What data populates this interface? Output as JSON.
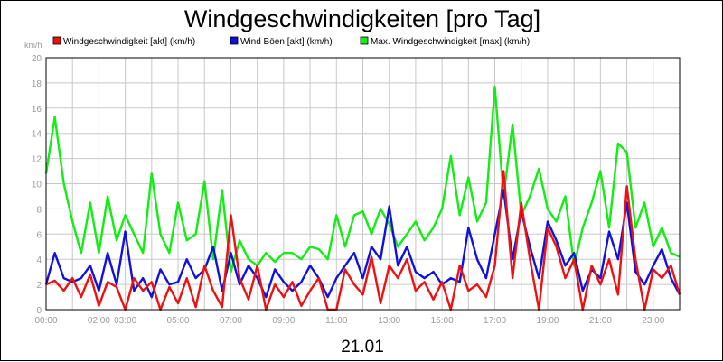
{
  "chart_data": {
    "type": "line",
    "title": "Windgeschwindigkeiten [pro Tag]",
    "ylabel": "km/h",
    "xlabel": "21.01",
    "ylim": [
      0,
      20
    ],
    "yticks": [
      "0",
      "2",
      "4",
      "6",
      "8",
      "10",
      "12",
      "14",
      "16",
      "18",
      "20"
    ],
    "xticks": [
      {
        "label": "00:00",
        "hour": 0
      },
      {
        "label": "02:00",
        "hour": 2
      },
      {
        "label": "03:00",
        "hour": 3
      },
      {
        "label": "05:00",
        "hour": 5
      },
      {
        "label": "07:00",
        "hour": 7
      },
      {
        "label": "09:00",
        "hour": 9
      },
      {
        "label": "11:00",
        "hour": 11
      },
      {
        "label": "13:00",
        "hour": 13
      },
      {
        "label": "15:00",
        "hour": 15
      },
      {
        "label": "17:00",
        "hour": 17
      },
      {
        "label": "19:00",
        "hour": 19
      },
      {
        "label": "21:00",
        "hour": 21
      },
      {
        "label": "23:00",
        "hour": 23
      }
    ],
    "xlim": [
      0,
      24
    ],
    "grid": true,
    "legend_position": "top",
    "series": [
      {
        "name": "Windgeschwindigkeit [akt] (km/h)",
        "color": "#ee1111",
        "x": [
          0,
          0.33,
          0.67,
          1,
          1.33,
          1.67,
          2,
          2.33,
          2.67,
          3,
          3.33,
          3.67,
          4,
          4.33,
          4.67,
          5,
          5.33,
          5.67,
          6,
          6.33,
          6.67,
          7,
          7.33,
          7.67,
          8,
          8.33,
          8.67,
          9,
          9.33,
          9.67,
          10,
          10.33,
          10.67,
          11,
          11.33,
          11.67,
          12,
          12.33,
          12.67,
          13,
          13.33,
          13.67,
          14,
          14.33,
          14.67,
          15,
          15.33,
          15.67,
          16,
          16.33,
          16.67,
          17,
          17.33,
          17.67,
          18,
          18.33,
          18.67,
          19,
          19.33,
          19.67,
          20,
          20.33,
          20.67,
          21,
          21.33,
          21.67,
          22,
          22.33,
          22.67,
          23,
          23.33,
          23.67,
          24
        ],
        "y": [
          2,
          2.3,
          1.5,
          2.5,
          1,
          2.8,
          0.3,
          2.2,
          1.8,
          0,
          2.5,
          1.5,
          2.2,
          0,
          1.8,
          0.5,
          2.5,
          0.2,
          3.5,
          1.5,
          0.2,
          7.5,
          2.5,
          0.8,
          3.5,
          0,
          2,
          1,
          2.2,
          0.3,
          1.5,
          2.5,
          0,
          0,
          3.2,
          2,
          1.2,
          4.2,
          0.5,
          3.5,
          2.5,
          4,
          1.5,
          2.2,
          0.8,
          2.2,
          0,
          3.5,
          1.5,
          2,
          1,
          3.5,
          11,
          2.5,
          8.5,
          4,
          0,
          6.5,
          5,
          2.5,
          4,
          0,
          3.5,
          2,
          4,
          1.2,
          9.8,
          4,
          0,
          3.2,
          2.5,
          3.5,
          1.2
        ]
      },
      {
        "name": "Wind Böen [akt] (km/h)",
        "color": "#1111dd",
        "x": [
          0,
          0.33,
          0.67,
          1,
          1.33,
          1.67,
          2,
          2.33,
          2.67,
          3,
          3.33,
          3.67,
          4,
          4.33,
          4.67,
          5,
          5.33,
          5.67,
          6,
          6.33,
          6.67,
          7,
          7.33,
          7.67,
          8,
          8.33,
          8.67,
          9,
          9.33,
          9.67,
          10,
          10.33,
          10.67,
          11,
          11.33,
          11.67,
          12,
          12.33,
          12.67,
          13,
          13.33,
          13.67,
          14,
          14.33,
          14.67,
          15,
          15.33,
          15.67,
          16,
          16.33,
          16.67,
          17,
          17.33,
          17.67,
          18,
          18.33,
          18.67,
          19,
          19.33,
          19.67,
          20,
          20.33,
          20.67,
          21,
          21.33,
          21.67,
          22,
          22.33,
          22.67,
          23,
          23.33,
          23.67,
          24
        ],
        "y": [
          2,
          4.5,
          2.5,
          2.2,
          2.5,
          3.5,
          1.5,
          4.5,
          2,
          6.2,
          1.5,
          2.5,
          1,
          3.2,
          2,
          2.2,
          4,
          2.5,
          3.2,
          5,
          1.5,
          4.5,
          2,
          3.5,
          2.5,
          1,
          3.2,
          2.2,
          1.5,
          2.2,
          3.5,
          2.5,
          1,
          2.5,
          3.5,
          4.5,
          2.5,
          5,
          4,
          8.2,
          3.5,
          5,
          3,
          2.5,
          3,
          2,
          2.5,
          2.2,
          6.5,
          4,
          2.5,
          6,
          9.5,
          4,
          7.8,
          5,
          2.5,
          7,
          5.5,
          3.5,
          4.5,
          1.5,
          3.2,
          2.5,
          6.2,
          4,
          8.5,
          3,
          2,
          3.5,
          4.8,
          2.5,
          1.2
        ]
      },
      {
        "name": "Max. Windgeschwindigkeit [max] (km/h)",
        "color": "#11ee11",
        "x": [
          0,
          0.33,
          0.67,
          1,
          1.33,
          1.67,
          2,
          2.33,
          2.67,
          3,
          3.33,
          3.67,
          4,
          4.33,
          4.67,
          5,
          5.33,
          5.67,
          6,
          6.33,
          6.67,
          7,
          7.33,
          7.67,
          8,
          8.33,
          8.67,
          9,
          9.33,
          9.67,
          10,
          10.33,
          10.67,
          11,
          11.33,
          11.67,
          12,
          12.33,
          12.67,
          13,
          13.33,
          13.67,
          14,
          14.33,
          14.67,
          15,
          15.33,
          15.67,
          16,
          16.33,
          16.67,
          17,
          17.33,
          17.67,
          18,
          18.33,
          18.67,
          19,
          19.33,
          19.67,
          20,
          20.33,
          20.67,
          21,
          21.33,
          21.67,
          22,
          22.33,
          22.67,
          23,
          23.33,
          23.67,
          24
        ],
        "y": [
          10.8,
          15.3,
          10,
          7,
          4.5,
          8.5,
          4.5,
          9,
          5.5,
          7.5,
          6,
          4.5,
          10.8,
          6,
          4.5,
          8.5,
          5.5,
          6,
          10.2,
          4,
          9.5,
          3,
          5.5,
          4,
          3.5,
          4.5,
          3.8,
          4.5,
          4.5,
          4,
          5,
          4.8,
          4,
          7.5,
          5,
          7.5,
          7.8,
          6,
          8,
          6.8,
          5,
          6,
          7,
          5.5,
          6.5,
          8,
          12.2,
          7.5,
          10.5,
          7,
          8.5,
          17.7,
          9,
          14.7,
          7.5,
          9,
          11.2,
          8,
          7,
          9,
          3.5,
          6.5,
          8.5,
          11,
          6.5,
          13.2,
          12.5,
          6.5,
          8.5,
          5,
          6.5,
          4.5,
          4.2
        ]
      }
    ]
  }
}
